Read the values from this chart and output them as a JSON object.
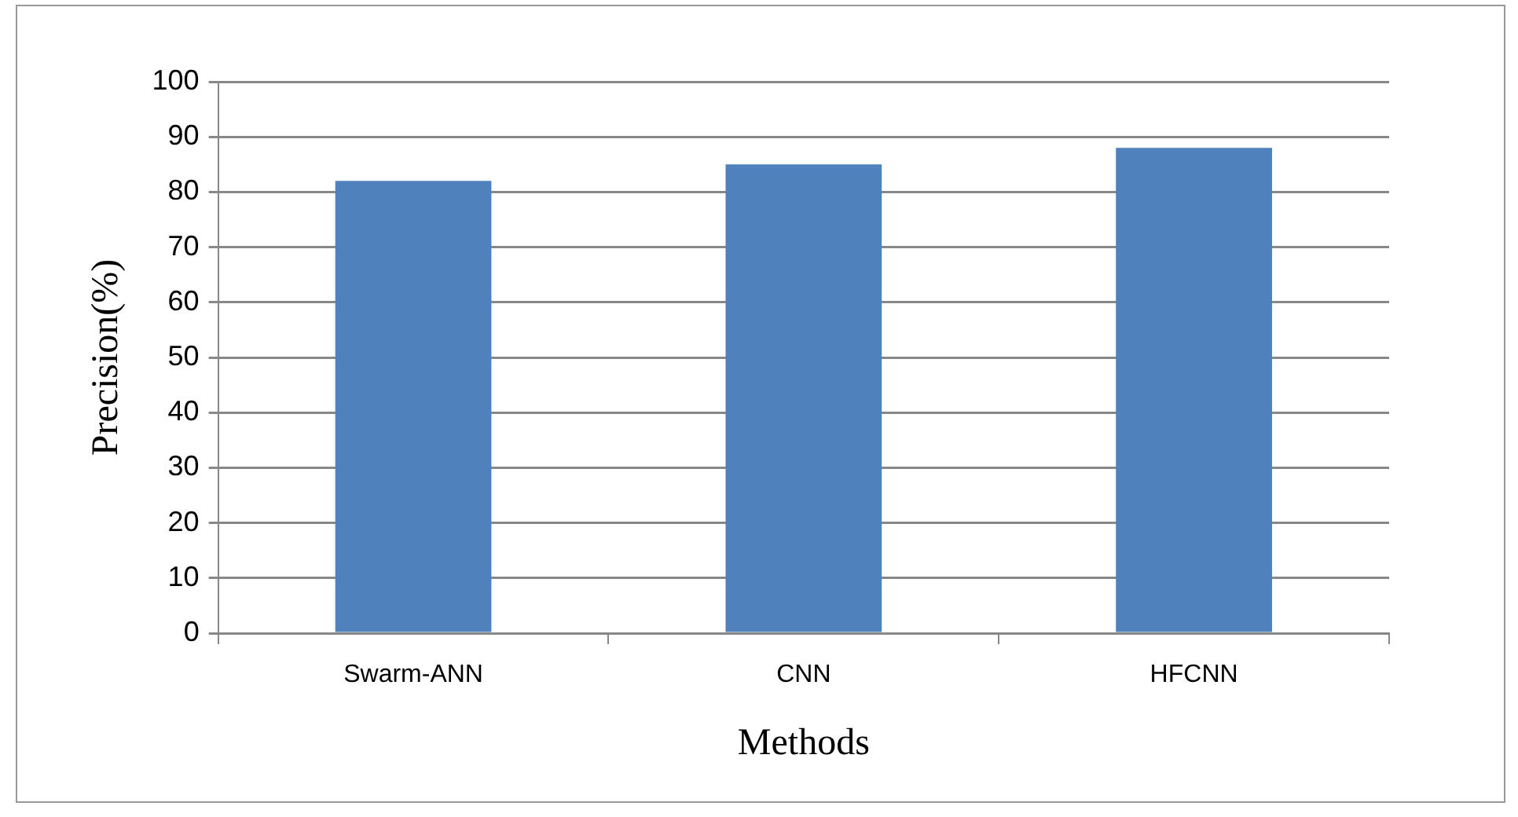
{
  "chart_data": {
    "type": "bar",
    "xlabel": "Methods",
    "ylabel": "Precision(%)",
    "categories": [
      "Swarm-ANN",
      "CNN",
      "HFCNN"
    ],
    "values": [
      82,
      85,
      88
    ],
    "color": "#4f81bd",
    "ylim": [
      0,
      100
    ],
    "yticks": [
      0,
      10,
      20,
      30,
      40,
      50,
      60,
      70,
      80,
      90,
      100
    ],
    "grid": "y",
    "legend": false
  }
}
